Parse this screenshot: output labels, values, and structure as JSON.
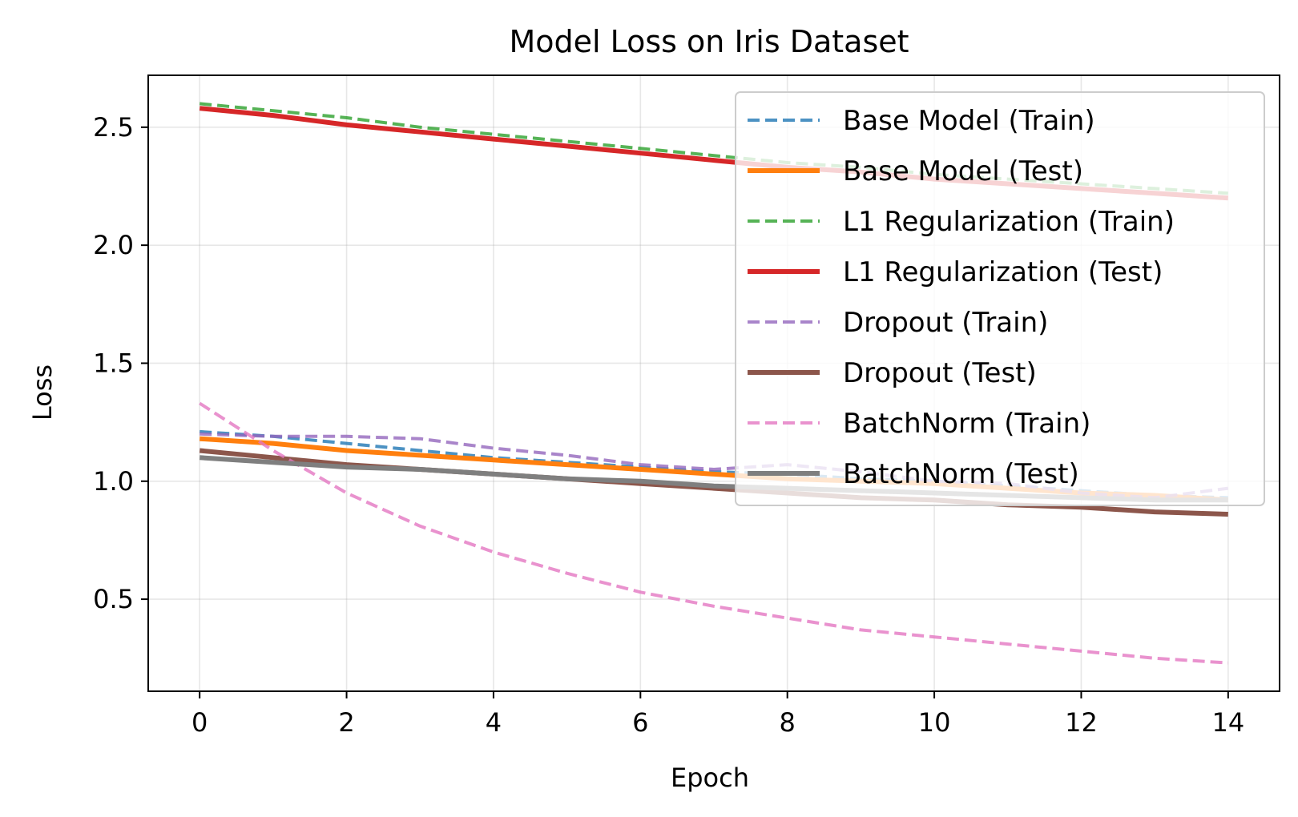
{
  "chart_data": {
    "type": "line",
    "title": "Model Loss on Iris Dataset",
    "xlabel": "Epoch",
    "ylabel": "Loss",
    "xlim": [
      -0.7,
      14.7
    ],
    "ylim": [
      0.11,
      2.72
    ],
    "xticks": [
      0,
      2,
      4,
      6,
      8,
      10,
      12,
      14
    ],
    "yticks": [
      0.5,
      1.0,
      1.5,
      2.0,
      2.5
    ],
    "xtick_labels": [
      "0",
      "2",
      "4",
      "6",
      "8",
      "10",
      "12",
      "14"
    ],
    "ytick_labels": [
      "0.5",
      "1.0",
      "1.5",
      "2.0",
      "2.5"
    ],
    "grid": true,
    "legend_position": "top-right",
    "x": [
      0,
      1,
      2,
      3,
      4,
      5,
      6,
      7,
      8,
      9,
      10,
      11,
      12,
      13,
      14
    ],
    "series": [
      {
        "name": "Base Model (Train)",
        "color": "#1f77b4",
        "style": "dashed",
        "values": [
          1.21,
          1.19,
          1.16,
          1.13,
          1.1,
          1.08,
          1.06,
          1.04,
          1.03,
          1.01,
          1.0,
          0.98,
          0.96,
          0.94,
          0.93
        ]
      },
      {
        "name": "Base Model (Test)",
        "color": "#ff7f0e",
        "style": "solid",
        "values": [
          1.18,
          1.16,
          1.13,
          1.11,
          1.09,
          1.07,
          1.05,
          1.03,
          1.01,
          1.0,
          0.99,
          0.97,
          0.95,
          0.94,
          0.92
        ]
      },
      {
        "name": "L1 Regularization (Train)",
        "color": "#2ca02c",
        "style": "dashed",
        "values": [
          2.6,
          2.57,
          2.54,
          2.5,
          2.47,
          2.44,
          2.41,
          2.38,
          2.35,
          2.33,
          2.3,
          2.28,
          2.26,
          2.24,
          2.22
        ]
      },
      {
        "name": "L1 Regularization (Test)",
        "color": "#d62728",
        "style": "solid",
        "values": [
          2.58,
          2.55,
          2.51,
          2.48,
          2.45,
          2.42,
          2.39,
          2.36,
          2.33,
          2.31,
          2.28,
          2.26,
          2.24,
          2.22,
          2.2
        ]
      },
      {
        "name": "Dropout (Train)",
        "color": "#9467bd",
        "style": "dashed",
        "values": [
          1.2,
          1.19,
          1.19,
          1.18,
          1.14,
          1.11,
          1.07,
          1.05,
          1.07,
          1.04,
          1.0,
          0.99,
          0.95,
          0.93,
          0.97
        ]
      },
      {
        "name": "Dropout (Test)",
        "color": "#8c564b",
        "style": "solid",
        "values": [
          1.13,
          1.1,
          1.07,
          1.05,
          1.03,
          1.01,
          0.99,
          0.97,
          0.95,
          0.93,
          0.92,
          0.9,
          0.89,
          0.87,
          0.86
        ]
      },
      {
        "name": "BatchNorm (Train)",
        "color": "#e377c2",
        "style": "dashed",
        "values": [
          1.33,
          1.13,
          0.95,
          0.81,
          0.7,
          0.61,
          0.53,
          0.47,
          0.42,
          0.37,
          0.34,
          0.31,
          0.28,
          0.25,
          0.23
        ]
      },
      {
        "name": "BatchNorm (Test)",
        "color": "#7f7f7f",
        "style": "solid",
        "values": [
          1.1,
          1.08,
          1.06,
          1.05,
          1.03,
          1.01,
          1.0,
          0.98,
          0.97,
          0.96,
          0.95,
          0.94,
          0.93,
          0.92,
          0.92
        ]
      }
    ]
  }
}
